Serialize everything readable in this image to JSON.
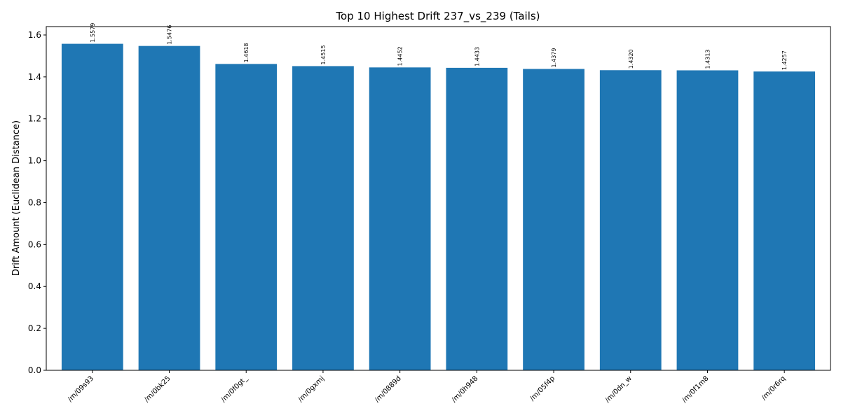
{
  "chart_data": {
    "type": "bar",
    "title": "Top 10 Highest Drift 237_vs_239 (Tails)",
    "xlabel": "",
    "ylabel": "Drift Amount (Euclidean Distance)",
    "categories": [
      "/m/09s93",
      "/m/0bk25",
      "/m/0f0gt_",
      "/m/0gxmj",
      "/m/0889d",
      "/m/0h948",
      "/m/05f4p",
      "/m/0dn_w",
      "/m/0f1m8",
      "/m/0r6rq"
    ],
    "values": [
      1.5579,
      1.5476,
      1.4618,
      1.4515,
      1.4452,
      1.4433,
      1.4379,
      1.432,
      1.4313,
      1.4257
    ],
    "data_labels": [
      "1.5579",
      "1.5476",
      "1.4618",
      "1.4515",
      "1.4452",
      "1.4433",
      "1.4379",
      "1.4320",
      "1.4313",
      "1.4257"
    ],
    "ylim": [
      0,
      1.64
    ],
    "yticks": [
      0.0,
      0.2,
      0.4,
      0.6,
      0.8,
      1.0,
      1.2,
      1.4,
      1.6
    ],
    "ytick_labels": [
      "0.0",
      "0.2",
      "0.4",
      "0.6",
      "0.8",
      "1.0",
      "1.2",
      "1.4",
      "1.6"
    ],
    "bar_color": "#1f77b4",
    "grid": false,
    "legend": "none"
  }
}
